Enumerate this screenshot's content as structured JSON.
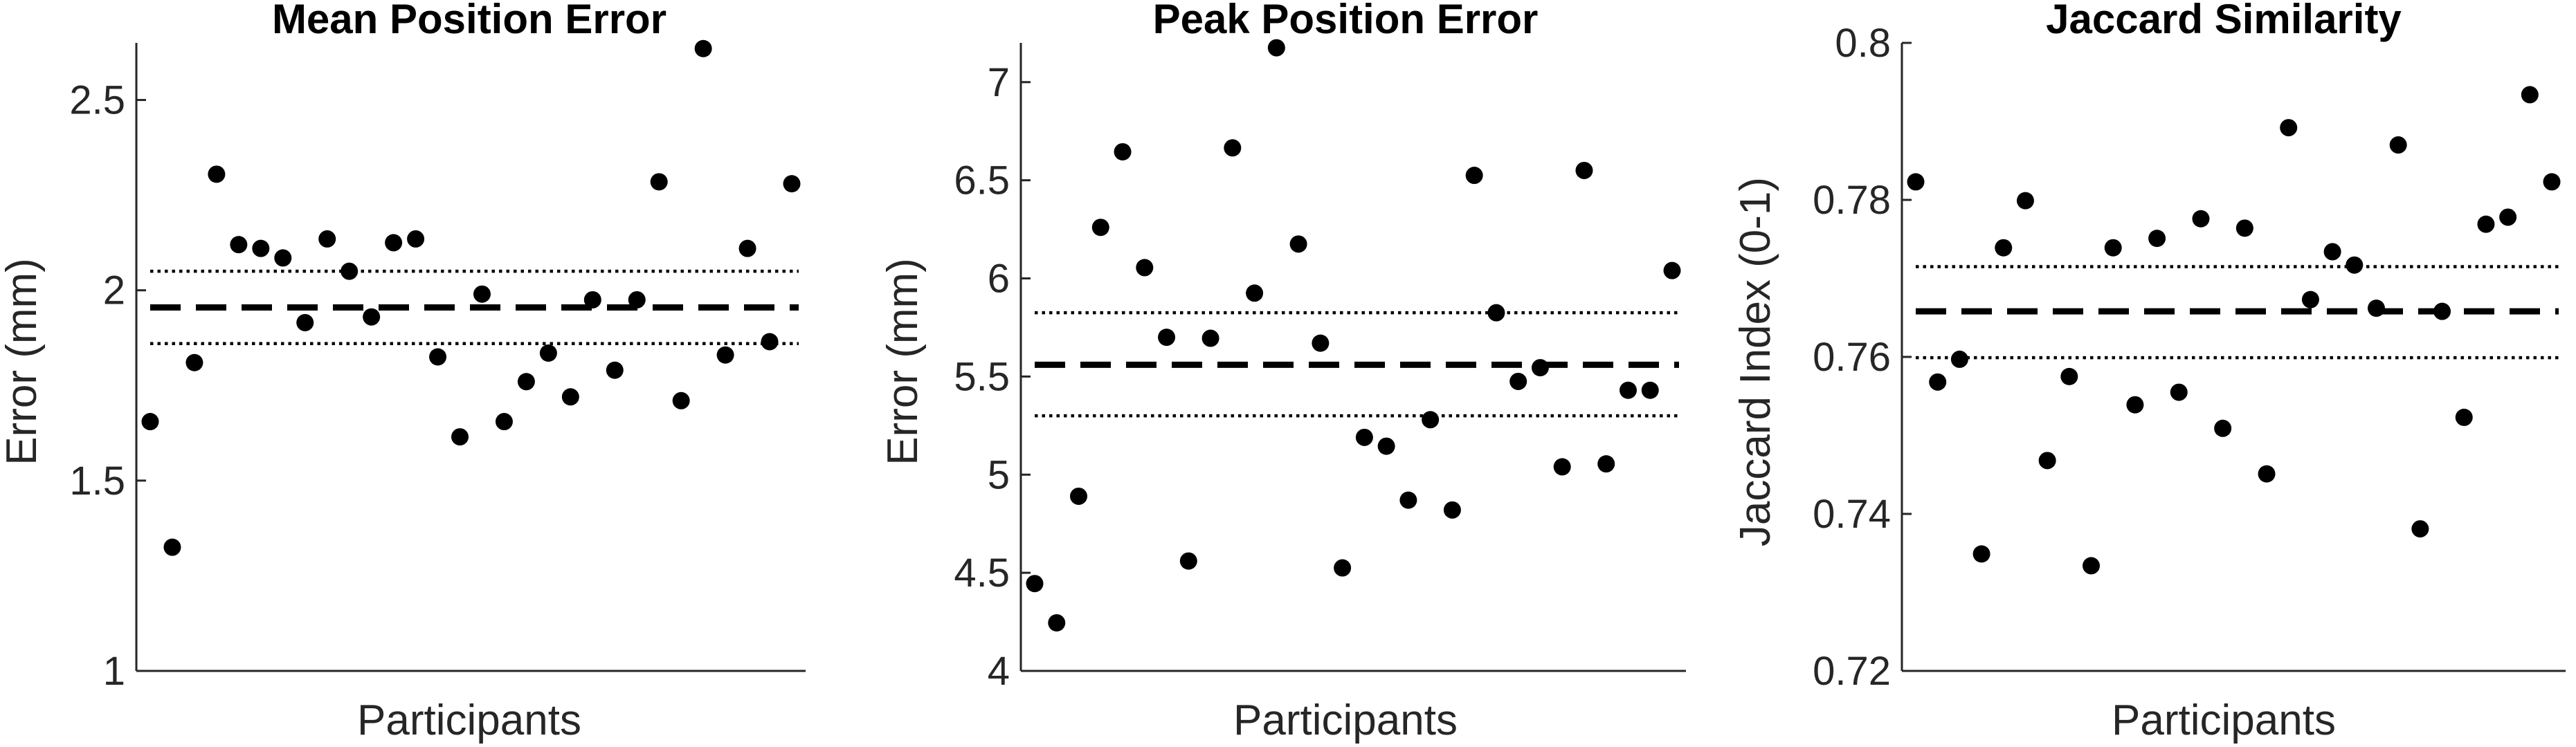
{
  "chart_data": [
    {
      "type": "scatter",
      "title": "Mean Position Error",
      "xlabel": "Participants",
      "ylabel": "Error (mm)",
      "ylim": [
        1,
        2.65
      ],
      "yticks": [
        1,
        1.5,
        2,
        2.5
      ],
      "ytick_labels": [
        "1",
        "1.5",
        "2",
        "2.5"
      ],
      "mean": 1.955,
      "ci": [
        1.86,
        2.05
      ],
      "values": [
        1.655,
        1.325,
        1.81,
        2.305,
        2.12,
        2.11,
        2.085,
        1.915,
        2.135,
        2.05,
        1.93,
        2.125,
        2.135,
        1.825,
        1.615,
        1.99,
        1.655,
        1.76,
        1.835,
        1.72,
        1.975,
        1.79,
        1.975,
        2.285,
        1.71,
        2.635,
        1.83,
        2.11,
        1.865,
        2.28
      ]
    },
    {
      "type": "scatter",
      "title": "Peak Position Error",
      "xlabel": "Participants",
      "ylabel": "Error (mm)",
      "ylim": [
        4,
        7.2
      ],
      "yticks": [
        4,
        4.5,
        5,
        5.5,
        6,
        6.5,
        7
      ],
      "ytick_labels": [
        "4",
        "4.5",
        "5",
        "5.5",
        "6",
        "6.5",
        "7"
      ],
      "mean": 5.56,
      "ci": [
        5.3,
        5.825
      ],
      "values": [
        4.445,
        4.245,
        4.89,
        6.26,
        6.645,
        6.055,
        5.7,
        4.56,
        5.695,
        6.665,
        5.925,
        7.175,
        6.175,
        5.67,
        4.525,
        5.19,
        5.145,
        4.87,
        5.28,
        4.82,
        6.525,
        5.825,
        5.475,
        5.545,
        5.04,
        6.55,
        5.055,
        5.43,
        5.43,
        6.04
      ]
    },
    {
      "type": "scatter",
      "title": "Jaccard Similarity",
      "xlabel": "Participants",
      "ylabel": "Jaccard Index (0-1)",
      "ylim": [
        0.72,
        0.8
      ],
      "yticks": [
        0.72,
        0.74,
        0.76,
        0.78,
        0.8
      ],
      "ytick_labels": [
        "0.72",
        "0.74",
        "0.76",
        "0.78",
        "0.8"
      ],
      "mean": 0.7658,
      "ci": [
        0.7599,
        0.7715
      ],
      "values": [
        0.7823,
        0.7568,
        0.7597,
        0.7349,
        0.7739,
        0.7799,
        0.7468,
        0.7575,
        0.7334,
        0.7739,
        0.7539,
        0.7751,
        0.7555,
        0.7776,
        0.7509,
        0.7764,
        0.7451,
        0.7892,
        0.7673,
        0.7734,
        0.7717,
        0.7662,
        0.787,
        0.7381,
        0.7658,
        0.7523,
        0.7769,
        0.7778,
        0.7934,
        0.7823
      ]
    }
  ]
}
